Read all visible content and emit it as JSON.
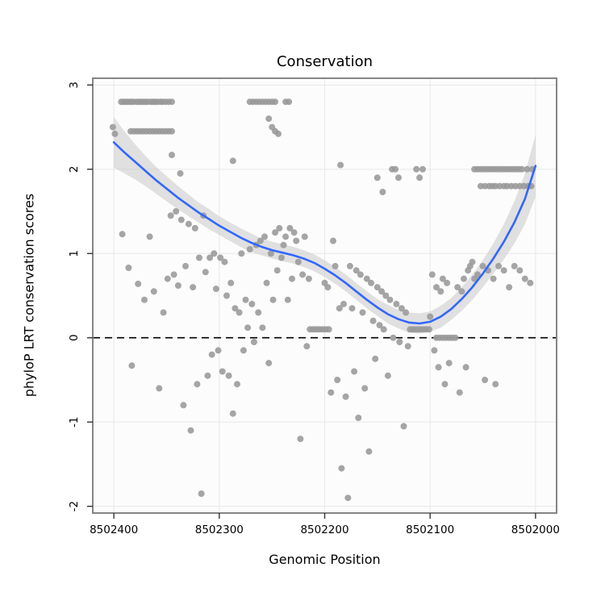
{
  "chart_data": {
    "type": "scatter",
    "title": "Conservation",
    "xlabel": "Genomic Position",
    "ylabel": "phyloP LRT conservation scores",
    "x_axis_reversed": true,
    "xlim": [
      8502420,
      8501980
    ],
    "ylim": [
      -2.08,
      3.08
    ],
    "x_ticks": [
      8502400,
      8502300,
      8502200,
      8502100,
      8502000
    ],
    "y_ticks": [
      -2,
      -1,
      0,
      1,
      2,
      3
    ],
    "grid": true,
    "legend": "none",
    "reference_line": {
      "y": 0,
      "style": "dashed",
      "color": "#000000"
    },
    "points_color": "#999999",
    "smooth_line_color": "#3366FF",
    "ci_band_color": "#C9C9C9",
    "panel_border_color": "#858585",
    "grid_color": "#E8E8E8",
    "points": [
      [
        8502393,
        2.8
      ],
      [
        8502391,
        2.8
      ],
      [
        8502389,
        2.8
      ],
      [
        8502387,
        2.8
      ],
      [
        8502385,
        2.8
      ],
      [
        8502383,
        2.8
      ],
      [
        8502381,
        2.8
      ],
      [
        8502378,
        2.8
      ],
      [
        8502376,
        2.8
      ],
      [
        8502374,
        2.8
      ],
      [
        8502372,
        2.8
      ],
      [
        8502370,
        2.8
      ],
      [
        8502368,
        2.8
      ],
      [
        8502365,
        2.8
      ],
      [
        8502363,
        2.8
      ],
      [
        8502361,
        2.8
      ],
      [
        8502359,
        2.8
      ],
      [
        8502356,
        2.8
      ],
      [
        8502354,
        2.8
      ],
      [
        8502351,
        2.8
      ],
      [
        8502348,
        2.8
      ],
      [
        8502345,
        2.8
      ],
      [
        8502401,
        2.5
      ],
      [
        8502399,
        2.42
      ],
      [
        8502384,
        2.45
      ],
      [
        8502381,
        2.45
      ],
      [
        8502378,
        2.45
      ],
      [
        8502375,
        2.45
      ],
      [
        8502372,
        2.45
      ],
      [
        8502369,
        2.45
      ],
      [
        8502366,
        2.45
      ],
      [
        8502363,
        2.45
      ],
      [
        8502360,
        2.45
      ],
      [
        8502357,
        2.45
      ],
      [
        8502354,
        2.45
      ],
      [
        8502351,
        2.45
      ],
      [
        8502348,
        2.45
      ],
      [
        8502345,
        2.45
      ],
      [
        8502271,
        2.8
      ],
      [
        8502268,
        2.8
      ],
      [
        8502265,
        2.8
      ],
      [
        8502262,
        2.8
      ],
      [
        8502259,
        2.8
      ],
      [
        8502256,
        2.8
      ],
      [
        8502253,
        2.8
      ],
      [
        8502250,
        2.8
      ],
      [
        8502247,
        2.8
      ],
      [
        8502237,
        2.8
      ],
      [
        8502234,
        2.8
      ],
      [
        8502253,
        2.6
      ],
      [
        8502250,
        2.5
      ],
      [
        8502247,
        2.45
      ],
      [
        8502244,
        2.42
      ],
      [
        8502058,
        2.0
      ],
      [
        8502055,
        2.0
      ],
      [
        8502052,
        2.0
      ],
      [
        8502049,
        2.0
      ],
      [
        8502046,
        2.0
      ],
      [
        8502043,
        2.0
      ],
      [
        8502040,
        2.0
      ],
      [
        8502037,
        2.0
      ],
      [
        8502034,
        2.0
      ],
      [
        8502031,
        2.0
      ],
      [
        8502028,
        2.0
      ],
      [
        8502025,
        2.0
      ],
      [
        8502022,
        2.0
      ],
      [
        8502019,
        2.0
      ],
      [
        8502016,
        2.0
      ],
      [
        8502013,
        2.0
      ],
      [
        8502008,
        2.0
      ],
      [
        8502003,
        2.0
      ],
      [
        8502052,
        1.8
      ],
      [
        8502048,
        1.8
      ],
      [
        8502044,
        1.8
      ],
      [
        8502041,
        1.8
      ],
      [
        8502038,
        1.8
      ],
      [
        8502034,
        1.8
      ],
      [
        8502030,
        1.8
      ],
      [
        8502027,
        1.8
      ],
      [
        8502023,
        1.8
      ],
      [
        8502019,
        1.8
      ],
      [
        8502015,
        1.8
      ],
      [
        8502011,
        1.8
      ],
      [
        8502007,
        1.8
      ],
      [
        8502004,
        1.8
      ],
      [
        8502345,
        2.17
      ],
      [
        8502337,
        1.95
      ],
      [
        8502287,
        2.1
      ],
      [
        8502185,
        2.05
      ],
      [
        8502150,
        1.9
      ],
      [
        8502145,
        1.73
      ],
      [
        8502136,
        2.0
      ],
      [
        8502133,
        2.0
      ],
      [
        8502130,
        1.9
      ],
      [
        8502113,
        2.0
      ],
      [
        8502110,
        1.9
      ],
      [
        8502107,
        2.0
      ],
      [
        8502392,
        1.23
      ],
      [
        8502386,
        0.83
      ],
      [
        8502383,
        -0.33
      ],
      [
        8502377,
        0.64
      ],
      [
        8502371,
        0.45
      ],
      [
        8502366,
        1.2
      ],
      [
        8502362,
        0.55
      ],
      [
        8502357,
        -0.6
      ],
      [
        8502353,
        0.3
      ],
      [
        8502349,
        0.7
      ],
      [
        8502346,
        1.45
      ],
      [
        8502343,
        0.75
      ],
      [
        8502341,
        1.5
      ],
      [
        8502339,
        0.62
      ],
      [
        8502336,
        1.4
      ],
      [
        8502334,
        -0.8
      ],
      [
        8502332,
        0.85
      ],
      [
        8502329,
        1.35
      ],
      [
        8502327,
        -1.1
      ],
      [
        8502325,
        0.6
      ],
      [
        8502323,
        1.3
      ],
      [
        8502321,
        -0.55
      ],
      [
        8502319,
        0.95
      ],
      [
        8502317,
        -1.85
      ],
      [
        8502315,
        1.45
      ],
      [
        8502313,
        0.78
      ],
      [
        8502311,
        -0.45
      ],
      [
        8502309,
        0.95
      ],
      [
        8502307,
        -0.2
      ],
      [
        8502305,
        1.0
      ],
      [
        8502303,
        0.58
      ],
      [
        8502301,
        -0.15
      ],
      [
        8502299,
        0.95
      ],
      [
        8502297,
        -0.4
      ],
      [
        8502295,
        0.9
      ],
      [
        8502293,
        0.5
      ],
      [
        8502291,
        -0.45
      ],
      [
        8502289,
        0.65
      ],
      [
        8502287,
        -0.9
      ],
      [
        8502285,
        0.35
      ],
      [
        8502283,
        -0.55
      ],
      [
        8502281,
        0.3
      ],
      [
        8502279,
        1.0
      ],
      [
        8502277,
        -0.15
      ],
      [
        8502275,
        0.45
      ],
      [
        8502273,
        0.12
      ],
      [
        8502271,
        1.05
      ],
      [
        8502269,
        0.4
      ],
      [
        8502267,
        -0.05
      ],
      [
        8502265,
        1.1
      ],
      [
        8502263,
        0.3
      ],
      [
        8502261,
        1.15
      ],
      [
        8502259,
        0.12
      ],
      [
        8502257,
        1.2
      ],
      [
        8502255,
        0.65
      ],
      [
        8502253,
        -0.3
      ],
      [
        8502251,
        1.0
      ],
      [
        8502249,
        0.45
      ],
      [
        8502247,
        1.25
      ],
      [
        8502245,
        0.8
      ],
      [
        8502243,
        1.3
      ],
      [
        8502241,
        0.95
      ],
      [
        8502239,
        1.1
      ],
      [
        8502237,
        1.2
      ],
      [
        8502235,
        0.45
      ],
      [
        8502233,
        1.3
      ],
      [
        8502231,
        0.7
      ],
      [
        8502229,
        1.25
      ],
      [
        8502227,
        1.15
      ],
      [
        8502225,
        0.9
      ],
      [
        8502223,
        -1.2
      ],
      [
        8502221,
        0.75
      ],
      [
        8502219,
        1.2
      ],
      [
        8502217,
        -0.1
      ],
      [
        8502215,
        0.7
      ],
      [
        8502214,
        0.1
      ],
      [
        8502211,
        0.1
      ],
      [
        8502208,
        0.1
      ],
      [
        8502205,
        0.1
      ],
      [
        8502202,
        0.1
      ],
      [
        8502199,
        0.1
      ],
      [
        8502196,
        0.1
      ],
      [
        8502200,
        0.65
      ],
      [
        8502197,
        0.6
      ],
      [
        8502194,
        -0.65
      ],
      [
        8502192,
        1.15
      ],
      [
        8502190,
        0.85
      ],
      [
        8502188,
        -0.5
      ],
      [
        8502186,
        0.35
      ],
      [
        8502184,
        -1.55
      ],
      [
        8502182,
        0.4
      ],
      [
        8502180,
        -0.7
      ],
      [
        8502178,
        -1.9
      ],
      [
        8502176,
        0.85
      ],
      [
        8502174,
        0.35
      ],
      [
        8502172,
        -0.4
      ],
      [
        8502170,
        0.8
      ],
      [
        8502168,
        -0.95
      ],
      [
        8502166,
        0.75
      ],
      [
        8502164,
        0.3
      ],
      [
        8502162,
        -0.6
      ],
      [
        8502160,
        0.7
      ],
      [
        8502158,
        -1.35
      ],
      [
        8502156,
        0.65
      ],
      [
        8502154,
        0.2
      ],
      [
        8502152,
        -0.25
      ],
      [
        8502150,
        0.6
      ],
      [
        8502148,
        0.15
      ],
      [
        8502146,
        0.55
      ],
      [
        8502144,
        0.1
      ],
      [
        8502142,
        0.5
      ],
      [
        8502140,
        -0.45
      ],
      [
        8502138,
        0.45
      ],
      [
        8502135,
        0.0
      ],
      [
        8502132,
        0.4
      ],
      [
        8502129,
        -0.05
      ],
      [
        8502127,
        0.35
      ],
      [
        8502125,
        -1.05
      ],
      [
        8502123,
        0.3
      ],
      [
        8502121,
        -0.1
      ],
      [
        8502119,
        0.1
      ],
      [
        8502116,
        0.1
      ],
      [
        8502113,
        0.1
      ],
      [
        8502110,
        0.1
      ],
      [
        8502107,
        0.1
      ],
      [
        8502104,
        0.1
      ],
      [
        8502101,
        0.1
      ],
      [
        8502100,
        0.25
      ],
      [
        8502098,
        0.75
      ],
      [
        8502096,
        -0.15
      ],
      [
        8502094,
        0.6
      ],
      [
        8502092,
        -0.35
      ],
      [
        8502090,
        0.55
      ],
      [
        8502088,
        0.7
      ],
      [
        8502086,
        -0.55
      ],
      [
        8502084,
        0.65
      ],
      [
        8502082,
        -0.3
      ],
      [
        8502094,
        0.0
      ],
      [
        8502091,
        0.0
      ],
      [
        8502088,
        0.0
      ],
      [
        8502085,
        0.0
      ],
      [
        8502082,
        0.0
      ],
      [
        8502079,
        0.0
      ],
      [
        8502076,
        0.0
      ],
      [
        8502074,
        0.6
      ],
      [
        8502072,
        -0.65
      ],
      [
        8502070,
        0.55
      ],
      [
        8502068,
        0.7
      ],
      [
        8502066,
        -0.35
      ],
      [
        8502064,
        0.8
      ],
      [
        8502062,
        0.85
      ],
      [
        8502060,
        0.9
      ],
      [
        8502058,
        0.7
      ],
      [
        8502055,
        0.75
      ],
      [
        8502050,
        0.85
      ],
      [
        8502048,
        -0.5
      ],
      [
        8502045,
        0.8
      ],
      [
        8502040,
        0.7
      ],
      [
        8502038,
        -0.55
      ],
      [
        8502035,
        0.85
      ],
      [
        8502030,
        0.8
      ],
      [
        8502025,
        0.6
      ],
      [
        8502020,
        0.85
      ],
      [
        8502015,
        0.8
      ],
      [
        8502010,
        0.7
      ],
      [
        8502005,
        0.65
      ]
    ],
    "smooth": {
      "x": [
        8502400,
        8502390,
        8502380,
        8502370,
        8502360,
        8502350,
        8502340,
        8502330,
        8502320,
        8502310,
        8502300,
        8502290,
        8502280,
        8502270,
        8502260,
        8502250,
        8502240,
        8502230,
        8502220,
        8502210,
        8502200,
        8502190,
        8502180,
        8502170,
        8502160,
        8502150,
        8502140,
        8502130,
        8502120,
        8502110,
        8502100,
        8502090,
        8502080,
        8502070,
        8502060,
        8502050,
        8502040,
        8502030,
        8502020,
        8502010,
        8502000
      ],
      "y": [
        2.32,
        2.2,
        2.09,
        1.98,
        1.87,
        1.77,
        1.67,
        1.58,
        1.49,
        1.41,
        1.33,
        1.26,
        1.19,
        1.13,
        1.08,
        1.04,
        1.01,
        0.98,
        0.94,
        0.89,
        0.82,
        0.74,
        0.65,
        0.55,
        0.45,
        0.36,
        0.28,
        0.22,
        0.18,
        0.17,
        0.19,
        0.25,
        0.34,
        0.46,
        0.6,
        0.76,
        0.94,
        1.14,
        1.37,
        1.65,
        2.04
      ],
      "halfwidth": [
        0.3,
        0.25,
        0.21,
        0.18,
        0.16,
        0.15,
        0.14,
        0.13,
        0.12,
        0.12,
        0.11,
        0.11,
        0.11,
        0.11,
        0.1,
        0.1,
        0.1,
        0.1,
        0.1,
        0.1,
        0.1,
        0.1,
        0.1,
        0.1,
        0.1,
        0.1,
        0.11,
        0.11,
        0.12,
        0.12,
        0.12,
        0.13,
        0.13,
        0.14,
        0.15,
        0.16,
        0.18,
        0.21,
        0.25,
        0.3,
        0.37
      ]
    }
  }
}
